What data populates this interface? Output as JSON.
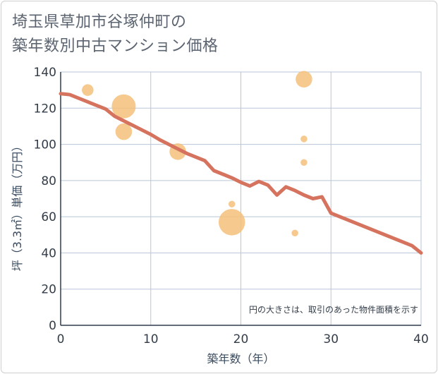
{
  "title_lines": [
    "埼玉県草加市谷塚仲町の",
    "築年数別中古マンション価格"
  ],
  "colors": {
    "line": "#d5735f",
    "bubble": "#f5c07a",
    "grid": "#b8c6d8",
    "axis": "#2f3d4d",
    "text": "#333d49",
    "label": "#3b4c60"
  },
  "chart_data": {
    "type": "scatter",
    "title": "埼玉県草加市谷塚仲町の築年数別中古マンション価格",
    "xlabel": "築年数（年）",
    "ylabel": "坪（3.3㎡）単価（万円）",
    "xlim": [
      0,
      40
    ],
    "ylim": [
      0,
      140
    ],
    "xticks": [
      0,
      10,
      20,
      30,
      40
    ],
    "yticks": [
      0,
      20,
      40,
      60,
      80,
      100,
      120,
      140
    ],
    "grid": true,
    "note": "円の大きさは、取引のあった物件面積を示す",
    "line": {
      "x": [
        0,
        1,
        2,
        3,
        4,
        5,
        6,
        7,
        8,
        9,
        10,
        11,
        12,
        13,
        14,
        15,
        16,
        17,
        18,
        19,
        20,
        21,
        22,
        23,
        24,
        25,
        26,
        27,
        28,
        29,
        30,
        31,
        32,
        33,
        34,
        35,
        36,
        37,
        38,
        39,
        40
      ],
      "y": [
        128,
        127.5,
        125.5,
        123.5,
        121.5,
        119.5,
        115.5,
        113,
        110.5,
        108,
        105.5,
        102.5,
        100,
        97.5,
        95,
        93,
        91,
        85.5,
        83.5,
        81.5,
        79,
        77,
        79.5,
        77.5,
        72,
        76.5,
        74.5,
        72,
        70,
        71,
        62,
        60,
        58,
        56,
        54,
        52,
        50,
        48,
        46,
        44,
        40
      ]
    },
    "bubbles": [
      {
        "x": 3,
        "y": 130,
        "size": 3
      },
      {
        "x": 7,
        "y": 121,
        "size": 8
      },
      {
        "x": 7,
        "y": 107,
        "size": 5
      },
      {
        "x": 13,
        "y": 96,
        "size": 5
      },
      {
        "x": 19,
        "y": 67,
        "size": 1
      },
      {
        "x": 19,
        "y": 57,
        "size": 9
      },
      {
        "x": 26,
        "y": 51,
        "size": 1
      },
      {
        "x": 27,
        "y": 136,
        "size": 5
      },
      {
        "x": 27,
        "y": 103,
        "size": 1
      },
      {
        "x": 27,
        "y": 90,
        "size": 1
      }
    ]
  }
}
